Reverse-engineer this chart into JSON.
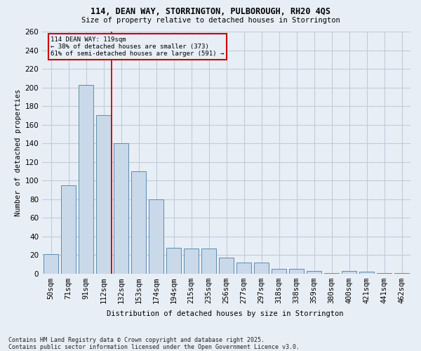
{
  "title_line1": "114, DEAN WAY, STORRINGTON, PULBOROUGH, RH20 4QS",
  "title_line2": "Size of property relative to detached houses in Storrington",
  "xlabel": "Distribution of detached houses by size in Storrington",
  "ylabel": "Number of detached properties",
  "footnote_line1": "Contains HM Land Registry data © Crown copyright and database right 2025.",
  "footnote_line2": "Contains public sector information licensed under the Open Government Licence v3.0.",
  "categories": [
    "50sqm",
    "71sqm",
    "91sqm",
    "112sqm",
    "132sqm",
    "153sqm",
    "174sqm",
    "194sqm",
    "215sqm",
    "235sqm",
    "256sqm",
    "277sqm",
    "297sqm",
    "318sqm",
    "338sqm",
    "359sqm",
    "380sqm",
    "400sqm",
    "421sqm",
    "441sqm",
    "462sqm"
  ],
  "values": [
    21,
    95,
    203,
    170,
    140,
    110,
    80,
    28,
    27,
    27,
    17,
    12,
    12,
    5,
    5,
    3,
    1,
    3,
    2,
    1,
    1
  ],
  "bar_color": "#c9d9ea",
  "bar_edge_color": "#5b8db0",
  "bar_linewidth": 0.7,
  "vline_x": 3.45,
  "vline_color": "#cc0000",
  "ann_line1": "114 DEAN WAY: 119sqm",
  "ann_line2": "← 38% of detached houses are smaller (373)",
  "ann_line3": "61% of semi-detached houses are larger (591) →",
  "ann_box_edge_color": "#cc0000",
  "ann_box_face_color": "#e8eef5",
  "grid_color": "#c0ccdd",
  "bg_color": "#e8eef5",
  "ylim": [
    0,
    260
  ],
  "yticks": [
    0,
    20,
    40,
    60,
    80,
    100,
    120,
    140,
    160,
    180,
    200,
    220,
    240,
    260
  ]
}
